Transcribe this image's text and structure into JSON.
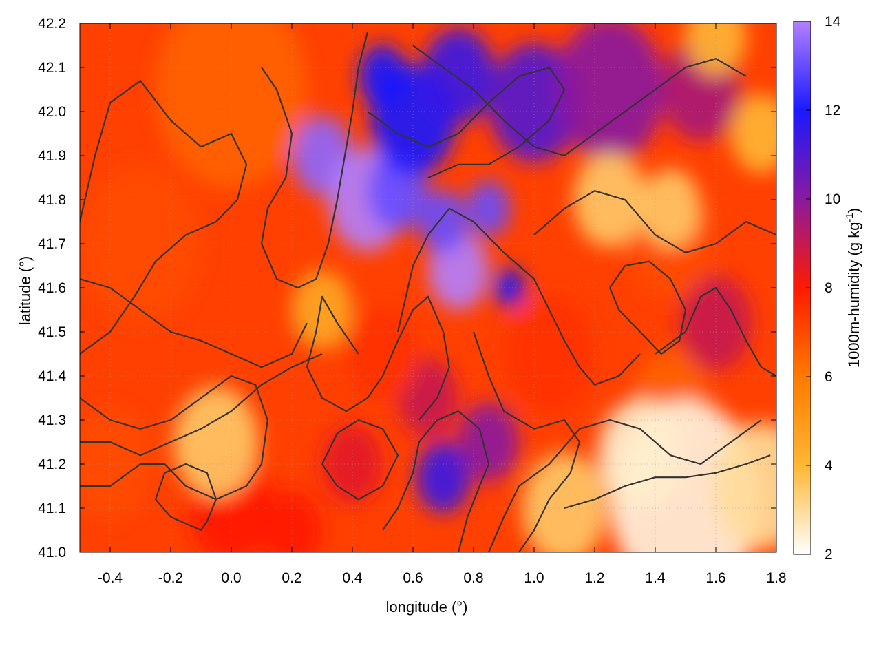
{
  "chart_data": {
    "type": "heatmap",
    "title": "",
    "xlabel": "longitude (°)",
    "ylabel": "latitude (°)",
    "colorbar_label": "1000m-humidity (g kg",
    "colorbar_label_exp": "-1",
    "colorbar_label_close": ")",
    "xlim": [
      -0.5,
      1.8
    ],
    "ylim": [
      41.0,
      42.2
    ],
    "clim": [
      2,
      14
    ],
    "x_ticks": [
      "-0.4",
      "-0.2",
      "0.0",
      "0.2",
      "0.4",
      "0.6",
      "0.8",
      "1.0",
      "1.2",
      "1.4",
      "1.6",
      "1.8"
    ],
    "x_tick_values": [
      -0.4,
      -0.2,
      0.0,
      0.2,
      0.4,
      0.6,
      0.8,
      1.0,
      1.2,
      1.4,
      1.6,
      1.8
    ],
    "y_ticks": [
      "41.0",
      "41.1",
      "41.2",
      "41.3",
      "41.4",
      "41.5",
      "41.6",
      "41.7",
      "41.8",
      "41.9",
      "42.0",
      "42.1",
      "42.2"
    ],
    "y_tick_values": [
      41.0,
      41.1,
      41.2,
      41.3,
      41.4,
      41.5,
      41.6,
      41.7,
      41.8,
      41.9,
      42.0,
      42.1,
      42.2
    ],
    "colorbar_ticks": [
      "2",
      "4",
      "6",
      "8",
      "10",
      "12",
      "14"
    ],
    "colorbar_tick_values": [
      2,
      4,
      6,
      8,
      10,
      12,
      14
    ],
    "grid": true,
    "colormap": [
      {
        "value": 2,
        "color": "#ffffff"
      },
      {
        "value": 4,
        "color": "#ffb733"
      },
      {
        "value": 6,
        "color": "#ff7a00"
      },
      {
        "value": 8,
        "color": "#ff1a00"
      },
      {
        "value": 10,
        "color": "#8a1aa0"
      },
      {
        "value": 12,
        "color": "#1a1aff"
      },
      {
        "value": 14,
        "color": "#b380ff"
      }
    ],
    "blobs": [
      {
        "lon": 0.3,
        "lat": 41.9,
        "r": 0.1,
        "v": 13.5
      },
      {
        "lon": 0.45,
        "lat": 41.8,
        "r": 0.13,
        "v": 14
      },
      {
        "lon": 0.55,
        "lat": 41.82,
        "r": 0.1,
        "v": 13
      },
      {
        "lon": 0.75,
        "lat": 41.64,
        "r": 0.1,
        "v": 14
      },
      {
        "lon": 0.7,
        "lat": 41.75,
        "r": 0.08,
        "v": 13
      },
      {
        "lon": 0.85,
        "lat": 41.78,
        "r": 0.07,
        "v": 13
      },
      {
        "lon": 0.92,
        "lat": 41.6,
        "r": 0.05,
        "v": 12
      },
      {
        "lon": 0.6,
        "lat": 41.98,
        "r": 0.14,
        "v": 12
      },
      {
        "lon": 0.75,
        "lat": 42.08,
        "r": 0.12,
        "v": 11.5
      },
      {
        "lon": 0.5,
        "lat": 42.08,
        "r": 0.08,
        "v": 12
      },
      {
        "lon": 1.0,
        "lat": 42.02,
        "r": 0.15,
        "v": 11
      },
      {
        "lon": 1.25,
        "lat": 42.05,
        "r": 0.18,
        "v": 10
      },
      {
        "lon": 1.55,
        "lat": 42.05,
        "r": 0.13,
        "v": 9.5
      },
      {
        "lon": 1.6,
        "lat": 41.52,
        "r": 0.12,
        "v": 9
      },
      {
        "lon": 0.7,
        "lat": 41.17,
        "r": 0.09,
        "v": 11.5
      },
      {
        "lon": 0.85,
        "lat": 41.25,
        "r": 0.1,
        "v": 10
      },
      {
        "lon": 0.65,
        "lat": 41.35,
        "r": 0.1,
        "v": 9
      },
      {
        "lon": 0.4,
        "lat": 41.2,
        "r": 0.1,
        "v": 8.5
      },
      {
        "lon": 0.0,
        "lat": 41.1,
        "r": 0.14,
        "v": 8
      },
      {
        "lon": 0.2,
        "lat": 41.05,
        "r": 0.1,
        "v": 8
      },
      {
        "lon": 0.5,
        "lat": 41.45,
        "r": 0.12,
        "v": 7.5
      },
      {
        "lon": 1.05,
        "lat": 41.45,
        "r": 0.15,
        "v": 7.5
      },
      {
        "lon": 1.45,
        "lat": 41.7,
        "r": 0.14,
        "v": 7
      },
      {
        "lon": 1.45,
        "lat": 41.35,
        "r": 0.12,
        "v": 6.5
      },
      {
        "lon": -0.3,
        "lat": 41.7,
        "r": 0.2,
        "v": 7
      },
      {
        "lon": -0.4,
        "lat": 41.2,
        "r": 0.14,
        "v": 7
      },
      {
        "lon": 0.0,
        "lat": 42.05,
        "r": 0.25,
        "v": 6.5
      },
      {
        "lon": -0.05,
        "lat": 41.25,
        "r": 0.14,
        "v": 3.5
      },
      {
        "lon": 0.3,
        "lat": 41.55,
        "r": 0.1,
        "v": 4.5
      },
      {
        "lon": 1.25,
        "lat": 41.8,
        "r": 0.12,
        "v": 3.5
      },
      {
        "lon": 1.45,
        "lat": 41.78,
        "r": 0.1,
        "v": 3.5
      },
      {
        "lon": 1.5,
        "lat": 41.12,
        "r": 0.25,
        "v": 2.3
      },
      {
        "lon": 1.35,
        "lat": 41.22,
        "r": 0.14,
        "v": 2.5
      },
      {
        "lon": 1.75,
        "lat": 41.15,
        "r": 0.16,
        "v": 3
      },
      {
        "lon": 1.6,
        "lat": 42.17,
        "r": 0.1,
        "v": 4
      },
      {
        "lon": 1.1,
        "lat": 41.1,
        "r": 0.14,
        "v": 3.5
      },
      {
        "lon": 1.75,
        "lat": 41.95,
        "r": 0.1,
        "v": 4
      }
    ],
    "contours": [
      [
        [
          -0.5,
          41.75
        ],
        [
          -0.45,
          41.9
        ],
        [
          -0.4,
          42.02
        ],
        [
          -0.3,
          42.07
        ],
        [
          -0.2,
          41.98
        ],
        [
          -0.1,
          41.92
        ],
        [
          0.0,
          41.95
        ],
        [
          0.05,
          41.88
        ],
        [
          0.02,
          41.8
        ],
        [
          -0.05,
          41.75
        ],
        [
          -0.15,
          41.72
        ],
        [
          -0.25,
          41.66
        ],
        [
          -0.32,
          41.58
        ],
        [
          -0.4,
          41.5
        ],
        [
          -0.48,
          41.46
        ],
        [
          -0.5,
          41.45
        ]
      ],
      [
        [
          -0.5,
          41.35
        ],
        [
          -0.4,
          41.3
        ],
        [
          -0.3,
          41.28
        ],
        [
          -0.2,
          41.3
        ],
        [
          -0.1,
          41.35
        ],
        [
          0.0,
          41.4
        ],
        [
          0.08,
          41.38
        ],
        [
          0.12,
          41.3
        ],
        [
          0.1,
          41.2
        ],
        [
          0.05,
          41.15
        ],
        [
          -0.05,
          41.12
        ],
        [
          -0.15,
          41.15
        ],
        [
          -0.22,
          41.2
        ],
        [
          -0.3,
          41.2
        ],
        [
          -0.4,
          41.15
        ],
        [
          -0.5,
          41.15
        ]
      ],
      [
        [
          -0.1,
          41.05
        ],
        [
          -0.2,
          41.08
        ],
        [
          -0.25,
          41.12
        ],
        [
          -0.22,
          41.18
        ],
        [
          -0.15,
          41.2
        ],
        [
          -0.08,
          41.18
        ],
        [
          -0.05,
          41.12
        ],
        [
          -0.08,
          41.07
        ],
        [
          -0.1,
          41.05
        ]
      ],
      [
        [
          0.1,
          42.1
        ],
        [
          0.15,
          42.05
        ],
        [
          0.2,
          41.95
        ],
        [
          0.18,
          41.85
        ],
        [
          0.12,
          41.78
        ],
        [
          0.1,
          41.7
        ],
        [
          0.15,
          41.62
        ],
        [
          0.22,
          41.6
        ],
        [
          0.28,
          41.62
        ],
        [
          0.32,
          41.7
        ],
        [
          0.35,
          41.8
        ],
        [
          0.38,
          41.92
        ],
        [
          0.4,
          42.0
        ],
        [
          0.42,
          42.1
        ],
        [
          0.45,
          42.18
        ]
      ],
      [
        [
          0.42,
          41.45
        ],
        [
          0.35,
          41.52
        ],
        [
          0.3,
          41.58
        ],
        [
          0.28,
          41.5
        ],
        [
          0.25,
          41.42
        ],
        [
          0.3,
          41.35
        ],
        [
          0.38,
          41.32
        ],
        [
          0.45,
          41.35
        ],
        [
          0.5,
          41.4
        ],
        [
          0.55,
          41.48
        ],
        [
          0.6,
          41.55
        ],
        [
          0.65,
          41.58
        ],
        [
          0.7,
          41.5
        ],
        [
          0.72,
          41.42
        ],
        [
          0.68,
          41.35
        ],
        [
          0.62,
          41.3
        ]
      ],
      [
        [
          0.55,
          41.5
        ],
        [
          0.6,
          41.65
        ],
        [
          0.65,
          41.72
        ],
        [
          0.72,
          41.78
        ],
        [
          0.8,
          41.75
        ],
        [
          0.9,
          41.68
        ],
        [
          1.0,
          41.62
        ],
        [
          1.05,
          41.55
        ],
        [
          1.1,
          41.48
        ],
        [
          1.15,
          41.42
        ],
        [
          1.2,
          41.38
        ],
        [
          1.28,
          41.4
        ],
        [
          1.35,
          41.45
        ]
      ],
      [
        [
          0.45,
          42.0
        ],
        [
          0.55,
          41.95
        ],
        [
          0.65,
          41.92
        ],
        [
          0.75,
          41.95
        ],
        [
          0.85,
          42.02
        ],
        [
          0.95,
          42.08
        ],
        [
          1.05,
          42.1
        ],
        [
          1.1,
          42.05
        ],
        [
          1.05,
          41.98
        ],
        [
          0.95,
          41.92
        ],
        [
          0.85,
          41.88
        ],
        [
          0.75,
          41.88
        ],
        [
          0.65,
          41.85
        ]
      ],
      [
        [
          0.6,
          42.15
        ],
        [
          0.7,
          42.1
        ],
        [
          0.8,
          42.05
        ],
        [
          0.9,
          41.98
        ],
        [
          1.0,
          41.92
        ],
        [
          1.1,
          41.9
        ],
        [
          1.2,
          41.95
        ],
        [
          1.3,
          42.0
        ],
        [
          1.4,
          42.05
        ],
        [
          1.5,
          42.1
        ],
        [
          1.6,
          42.12
        ],
        [
          1.7,
          42.08
        ]
      ],
      [
        [
          1.0,
          41.72
        ],
        [
          1.1,
          41.78
        ],
        [
          1.2,
          41.82
        ],
        [
          1.3,
          41.8
        ],
        [
          1.4,
          41.72
        ],
        [
          1.5,
          41.68
        ],
        [
          1.6,
          41.7
        ],
        [
          1.7,
          41.75
        ],
        [
          1.8,
          41.72
        ]
      ],
      [
        [
          0.8,
          41.5
        ],
        [
          0.85,
          41.4
        ],
        [
          0.9,
          41.32
        ],
        [
          1.0,
          41.28
        ],
        [
          1.1,
          41.3
        ],
        [
          1.15,
          41.25
        ],
        [
          1.12,
          41.18
        ],
        [
          1.05,
          41.12
        ],
        [
          1.0,
          41.05
        ],
        [
          0.95,
          41.0
        ]
      ],
      [
        [
          0.85,
          41.0
        ],
        [
          0.9,
          41.08
        ],
        [
          0.95,
          41.15
        ],
        [
          1.05,
          41.2
        ],
        [
          1.15,
          41.28
        ],
        [
          1.25,
          41.3
        ],
        [
          1.35,
          41.28
        ],
        [
          1.45,
          41.22
        ],
        [
          1.55,
          41.2
        ],
        [
          1.65,
          41.25
        ],
        [
          1.75,
          41.3
        ]
      ],
      [
        [
          0.75,
          41.0
        ],
        [
          0.78,
          41.08
        ],
        [
          0.82,
          41.15
        ],
        [
          0.85,
          41.2
        ],
        [
          0.82,
          41.28
        ],
        [
          0.75,
          41.32
        ],
        [
          0.68,
          41.3
        ],
        [
          0.62,
          41.25
        ],
        [
          0.6,
          41.18
        ],
        [
          0.55,
          41.1
        ],
        [
          0.5,
          41.05
        ]
      ],
      [
        [
          1.1,
          41.1
        ],
        [
          1.2,
          41.12
        ],
        [
          1.3,
          41.15
        ],
        [
          1.4,
          41.17
        ],
        [
          1.5,
          41.17
        ],
        [
          1.6,
          41.18
        ],
        [
          1.7,
          41.2
        ],
        [
          1.78,
          41.22
        ]
      ],
      [
        [
          1.4,
          41.45
        ],
        [
          1.5,
          41.5
        ],
        [
          1.55,
          41.58
        ],
        [
          1.6,
          41.6
        ],
        [
          1.65,
          41.55
        ],
        [
          1.7,
          41.48
        ],
        [
          1.75,
          41.42
        ],
        [
          1.8,
          41.4
        ]
      ],
      [
        [
          -0.5,
          41.25
        ],
        [
          -0.4,
          41.25
        ],
        [
          -0.3,
          41.22
        ],
        [
          -0.2,
          41.25
        ],
        [
          -0.1,
          41.28
        ],
        [
          0.0,
          41.32
        ],
        [
          0.1,
          41.38
        ],
        [
          0.2,
          41.42
        ],
        [
          0.3,
          41.45
        ]
      ],
      [
        [
          -0.5,
          41.62
        ],
        [
          -0.4,
          41.6
        ],
        [
          -0.3,
          41.55
        ],
        [
          -0.2,
          41.5
        ],
        [
          -0.1,
          41.48
        ],
        [
          0.0,
          41.45
        ],
        [
          0.1,
          41.42
        ],
        [
          0.2,
          41.45
        ],
        [
          0.25,
          41.52
        ]
      ],
      [
        [
          0.3,
          41.2
        ],
        [
          0.35,
          41.15
        ],
        [
          0.42,
          41.12
        ],
        [
          0.5,
          41.15
        ],
        [
          0.55,
          41.22
        ],
        [
          0.5,
          41.28
        ],
        [
          0.42,
          41.3
        ],
        [
          0.35,
          41.27
        ],
        [
          0.3,
          41.2
        ]
      ],
      [
        [
          1.25,
          41.6
        ],
        [
          1.3,
          41.65
        ],
        [
          1.38,
          41.66
        ],
        [
          1.45,
          41.62
        ],
        [
          1.5,
          41.55
        ],
        [
          1.48,
          41.48
        ],
        [
          1.42,
          41.45
        ],
        [
          1.35,
          41.5
        ],
        [
          1.28,
          41.55
        ],
        [
          1.25,
          41.6
        ]
      ]
    ]
  }
}
